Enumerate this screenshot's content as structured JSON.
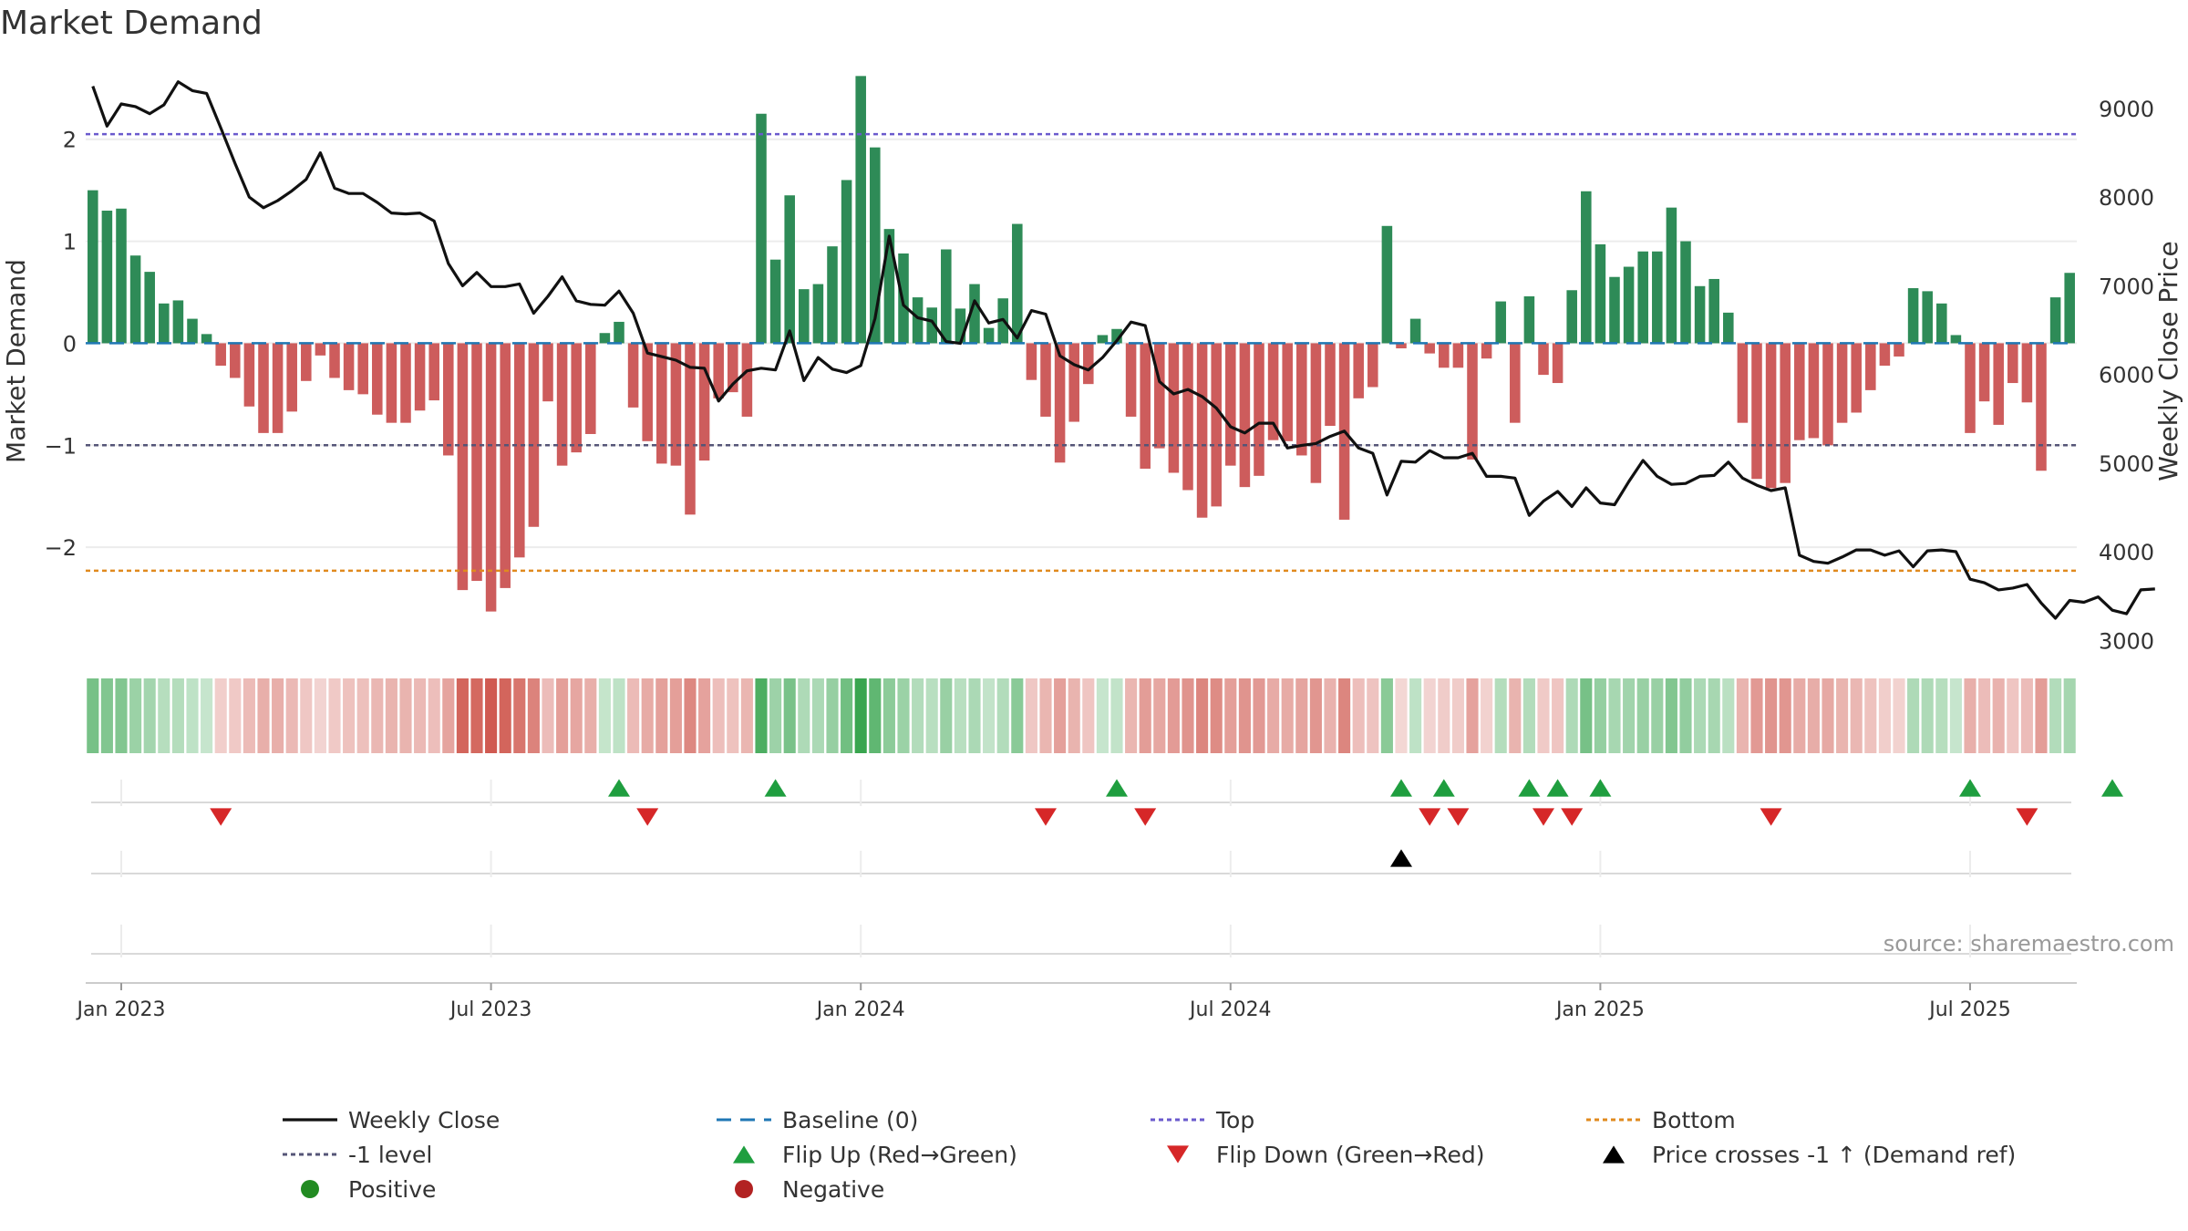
{
  "chart_data": {
    "type": "bar",
    "title": "Market Demand",
    "ylabel_left": "Market Demand",
    "ylabel_right": "Weekly Close Price",
    "source": "source: sharemaestro.com",
    "ylim_left": [
      -3.0,
      2.65
    ],
    "ylim_right": [
      2900,
      9400
    ],
    "left_ticks": [
      {
        "v": 2,
        "label": "2"
      },
      {
        "v": 1,
        "label": "1"
      },
      {
        "v": 0,
        "label": "0"
      },
      {
        "v": -1,
        "label": "−1"
      },
      {
        "v": -2,
        "label": "−2"
      }
    ],
    "right_ticks": [
      {
        "v": 9000,
        "label": "9000"
      },
      {
        "v": 8000,
        "label": "8000"
      },
      {
        "v": 7000,
        "label": "7000"
      },
      {
        "v": 6000,
        "label": "6000"
      },
      {
        "v": 5000,
        "label": "5000"
      },
      {
        "v": 4000,
        "label": "4000"
      },
      {
        "v": 3000,
        "label": "3000"
      }
    ],
    "x_ticks": [
      {
        "i": 2,
        "label": "Jan 2023"
      },
      {
        "i": 28,
        "label": "Jul 2023"
      },
      {
        "i": 54,
        "label": "Jan 2024"
      },
      {
        "i": 80,
        "label": "Jul 2024"
      },
      {
        "i": 106,
        "label": "Jan 2025"
      },
      {
        "i": 132,
        "label": "Jul 2025"
      }
    ],
    "reference_lines": {
      "top": 2.05,
      "minus_one": -1.0,
      "bottom": -2.23,
      "baseline": 0
    },
    "colors": {
      "positive_bar": "#2e8b57",
      "negative_bar": "#cd5c5c",
      "price_line": "#111111",
      "baseline": "#1f77b4",
      "top": "#6a5acd",
      "minus_one": "#555577",
      "bottom": "#e08a1e",
      "flip_up": "#1f9e3f",
      "flip_down": "#d62728",
      "cross": "#000000",
      "positive_dot": "#228b22",
      "negative_dot": "#b22222"
    },
    "demand": [
      1.5,
      1.3,
      1.32,
      0.86,
      0.7,
      0.39,
      0.42,
      0.24,
      0.09,
      -0.22,
      -0.34,
      -0.62,
      -0.88,
      -0.88,
      -0.67,
      -0.37,
      -0.12,
      -0.34,
      -0.46,
      -0.5,
      -0.7,
      -0.78,
      -0.78,
      -0.66,
      -0.56,
      -1.1,
      -2.42,
      -2.33,
      -2.63,
      -2.4,
      -2.1,
      -1.8,
      -0.57,
      -1.2,
      -1.07,
      -0.89,
      0.1,
      0.21,
      -0.63,
      -0.96,
      -1.18,
      -1.2,
      -1.68,
      -1.15,
      -0.54,
      -0.48,
      -0.72,
      2.25,
      0.82,
      1.45,
      0.53,
      0.58,
      0.95,
      1.6,
      2.62,
      1.92,
      1.12,
      0.88,
      0.45,
      0.35,
      0.92,
      0.34,
      0.58,
      0.15,
      0.44,
      1.17,
      -0.36,
      -0.72,
      -1.17,
      -0.77,
      -0.4,
      0.08,
      0.14,
      -0.72,
      -1.23,
      -1.03,
      -1.27,
      -1.44,
      -1.71,
      -1.6,
      -1.2,
      -1.41,
      -1.3,
      -0.95,
      -0.96,
      -1.1,
      -1.37,
      -0.81,
      -1.73,
      -0.54,
      -0.43,
      1.15,
      -0.05,
      0.24,
      -0.1,
      -0.24,
      -0.24,
      -1.14,
      -0.15,
      0.41,
      -0.78,
      0.46,
      -0.31,
      -0.39,
      0.52,
      1.49,
      0.97,
      0.65,
      0.75,
      0.9,
      0.9,
      1.33,
      1.0,
      0.56,
      0.63,
      0.3,
      -0.78,
      -1.33,
      -1.42,
      -1.37,
      -0.95,
      -0.93,
      -1.0,
      -0.78,
      -0.68,
      -0.46,
      -0.22,
      -0.13,
      0.54,
      0.51,
      0.39,
      0.08,
      -0.88,
      -0.57,
      -0.8,
      -0.39,
      -0.58,
      -1.25,
      0.45,
      0.69
    ],
    "price": [
      9250,
      8800,
      9050,
      9020,
      8940,
      9040,
      9300,
      9200,
      9170,
      8780,
      8380,
      8000,
      7880,
      7960,
      8070,
      8200,
      8500,
      8100,
      8040,
      8040,
      7940,
      7820,
      7810,
      7820,
      7730,
      7250,
      7000,
      7150,
      6990,
      6990,
      7020,
      6690,
      6880,
      7100,
      6830,
      6790,
      6780,
      6940,
      6690,
      6240,
      6200,
      6160,
      6080,
      6070,
      5700,
      5890,
      6040,
      6070,
      6050,
      6490,
      5930,
      6190,
      6060,
      6020,
      6100,
      6630,
      7560,
      6780,
      6640,
      6600,
      6370,
      6350,
      6830,
      6580,
      6620,
      6410,
      6720,
      6680,
      6210,
      6110,
      6050,
      6190,
      6380,
      6590,
      6550,
      5920,
      5780,
      5830,
      5750,
      5620,
      5410,
      5340,
      5450,
      5450,
      5170,
      5200,
      5220,
      5300,
      5360,
      5170,
      5110,
      4640,
      5020,
      5010,
      5140,
      5060,
      5060,
      5110,
      4850,
      4850,
      4830,
      4410,
      4570,
      4680,
      4510,
      4720,
      4550,
      4530,
      4790,
      5030,
      4850,
      4760,
      4770,
      4850,
      4860,
      5010,
      4830,
      4750,
      4690,
      4720,
      3960,
      3890,
      3870,
      3940,
      4020,
      4020,
      3960,
      4010,
      3830,
      4010,
      4020,
      4000,
      3690,
      3650,
      3570,
      3590,
      3630,
      3420,
      3250,
      3450,
      3430,
      3490,
      3340,
      3300,
      3570,
      3580
    ],
    "flip_up_weeks": [
      37,
      48,
      72,
      92,
      95,
      101,
      103,
      106,
      132,
      142
    ],
    "flip_down_weeks": [
      9,
      39,
      67,
      74,
      94,
      96,
      102,
      104,
      118,
      136
    ],
    "price_cross_weeks": [
      92
    ],
    "legend": [
      {
        "label": "Weekly Close",
        "symbol": "solid-line",
        "color": "#111111"
      },
      {
        "label": "Baseline (0)",
        "symbol": "dashed-line",
        "color": "#1f77b4"
      },
      {
        "label": "Top",
        "symbol": "dotted-line",
        "color": "#6a5acd"
      },
      {
        "label": "Bottom",
        "symbol": "dotted-line",
        "color": "#e08a1e"
      },
      {
        "label": "-1 level",
        "symbol": "dotted-line",
        "color": "#555577"
      },
      {
        "label": "Flip Up (Red→Green)",
        "symbol": "triangle-up",
        "color": "#1f9e3f"
      },
      {
        "label": "Flip Down (Green→Red)",
        "symbol": "triangle-down",
        "color": "#d62728"
      },
      {
        "label": "Price crosses -1 ↑ (Demand ref)",
        "symbol": "triangle-up",
        "color": "#000000"
      },
      {
        "label": "Positive",
        "symbol": "dot",
        "color": "#228b22"
      },
      {
        "label": "Negative",
        "symbol": "dot",
        "color": "#b22222"
      }
    ]
  }
}
